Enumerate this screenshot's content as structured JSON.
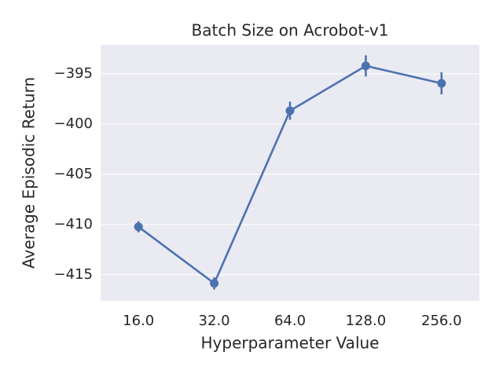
{
  "chart_data": {
    "type": "pointplot",
    "title": "Batch Size on Acrobot-v1",
    "x_label": "Hyperparameter Value",
    "y_label": "Average Episodic Return",
    "categories": [
      "16.0",
      "32.0",
      "64.0",
      "128.0",
      "256.0"
    ],
    "values": [
      -410.23,
      -415.86,
      -398.67,
      -394.2,
      -395.94
    ],
    "errors": [
      0.55,
      0.6,
      0.9,
      1.05,
      1.1
    ],
    "color": "#4c72b0",
    "ylim": [
      -417.6,
      -392.1
    ],
    "yticks": [
      {
        "value": -395,
        "label": "−395"
      },
      {
        "value": -400,
        "label": "−400"
      },
      {
        "value": -405,
        "label": "−405"
      },
      {
        "value": -410,
        "label": "−410"
      },
      {
        "value": -415,
        "label": "−415"
      }
    ],
    "grid": true,
    "background": "#eaeaf2"
  }
}
